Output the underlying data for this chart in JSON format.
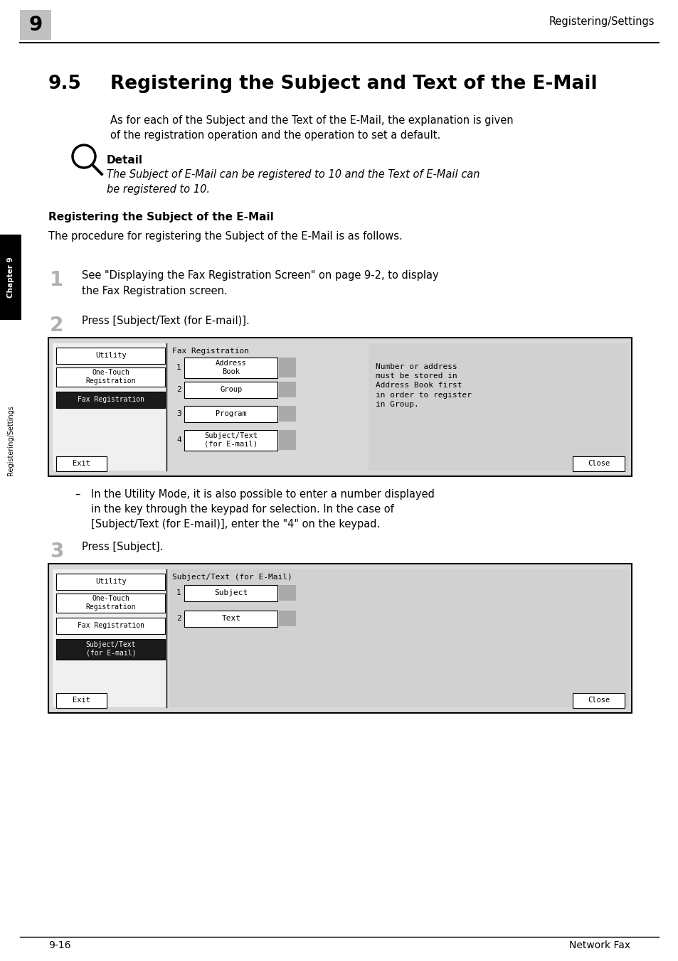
{
  "page_bg": "#ffffff",
  "header_tab_text": "9",
  "header_right_text": "Registering/Settings",
  "section_number": "9.5",
  "section_title": "Registering the Subject and Text of the E-Mail",
  "intro_text": "As for each of the Subject and the Text of the E-Mail, the explanation is given\nof the registration operation and the operation to set a default.",
  "detail_label": "Detail",
  "detail_italic": "The Subject of E-Mail can be registered to 10 and the Text of E-Mail can\nbe registered to 10.",
  "subsection_title": "Registering the Subject of the E-Mail",
  "subsection_intro": "The procedure for registering the Subject of the E-Mail is as follows.",
  "step1_num": "1",
  "step1_text": "See \"Displaying the Fax Registration Screen\" on page 9-2, to display\nthe Fax Registration screen.",
  "step2_num": "2",
  "step2_text": "Press [Subject/Text (for E-mail)].",
  "step3_num": "3",
  "step3_text": "Press [Subject].",
  "bullet_text": "In the Utility Mode, it is also possible to enter a number displayed\nin the key through the keypad for selection. In the case of\n[Subject/Text (for E-mail)], enter the \"4\" on the keypad.",
  "sidebar_text1": "Chapter 9",
  "sidebar_text2": "Registering/Settings",
  "footer_left": "9-16",
  "footer_right": "Network Fax"
}
